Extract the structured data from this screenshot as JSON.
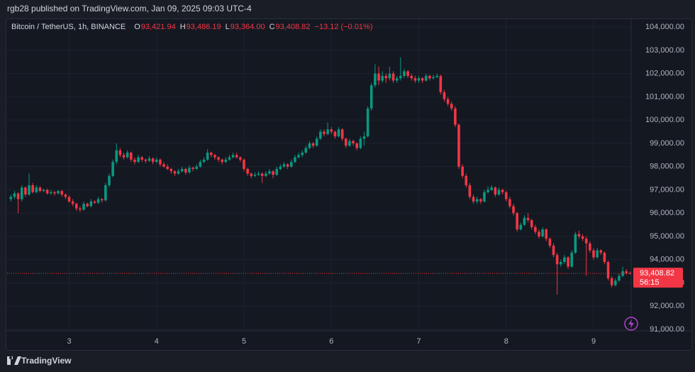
{
  "header": {
    "published": "rgb28 published on TradingView.com, Jan 09, 2025 09:03 UTC-4",
    "brand": "TradingView"
  },
  "chart_data": {
    "type": "candlestick",
    "symbol": "Bitcoin / TetherUS, 1h, BINANCE",
    "ohlc_legend": [
      {
        "label": "O",
        "value": "93,421.94"
      },
      {
        "label": "H",
        "value": "93,486.19"
      },
      {
        "label": "L",
        "value": "93,364.00"
      },
      {
        "label": "C",
        "value": "93,408.82"
      }
    ],
    "change": "−13.12 (−0.01%)",
    "last_price_label": "93,408.82",
    "countdown": "56:15",
    "up_color": "#089981",
    "down_color": "#f23645",
    "grid": true,
    "xlim": [
      2.29,
      9.43
    ],
    "xticks": [
      3,
      4,
      5,
      6,
      7,
      8,
      9
    ],
    "ylim": [
      90940,
      104370
    ],
    "yticks": [
      {
        "value": 91000,
        "label": "91,000.00"
      },
      {
        "value": 92000,
        "label": "92,000.00"
      },
      {
        "value": 93000,
        "label": "93,000.00"
      },
      {
        "value": 94000,
        "label": "94,000.00"
      },
      {
        "value": 95000,
        "label": "95,000.00"
      },
      {
        "value": 96000,
        "label": "96,000.00"
      },
      {
        "value": 97000,
        "label": "97,000.00"
      },
      {
        "value": 98000,
        "label": "98,000.00"
      },
      {
        "value": 99000,
        "label": "99,000.00"
      },
      {
        "value": 100000,
        "label": "100,000.00"
      },
      {
        "value": 101000,
        "label": "101,000.00"
      },
      {
        "value": 102000,
        "label": "102,000.00"
      },
      {
        "value": 103000,
        "label": "103,000.00"
      },
      {
        "value": 104000,
        "label": "104,000.00"
      }
    ],
    "last_price": 93408.82,
    "candles": [
      [
        2.3333,
        96600,
        96800,
        96500,
        96700
      ],
      [
        2.375,
        96700,
        96950,
        96600,
        96850
      ],
      [
        2.4167,
        96850,
        96900,
        96000,
        96600
      ],
      [
        2.4583,
        96600,
        97200,
        96500,
        97100
      ],
      [
        2.5,
        97100,
        97150,
        96700,
        96800
      ],
      [
        2.5417,
        96800,
        97700,
        96750,
        97200
      ],
      [
        2.5833,
        97200,
        97300,
        96850,
        96900
      ],
      [
        2.625,
        96900,
        97200,
        96850,
        97100
      ],
      [
        2.6667,
        97100,
        97150,
        96900,
        96950
      ],
      [
        2.7083,
        96950,
        97050,
        96900,
        97000
      ],
      [
        2.75,
        97000,
        97050,
        96800,
        96850
      ],
      [
        2.7917,
        96850,
        97000,
        96800,
        96900
      ],
      [
        2.8333,
        96900,
        96950,
        96750,
        96850
      ],
      [
        2.875,
        96850,
        97000,
        96800,
        96950
      ],
      [
        2.9167,
        96950,
        97000,
        96700,
        96800
      ],
      [
        2.9583,
        96800,
        96850,
        96600,
        96700
      ],
      [
        3.0,
        96700,
        96750,
        96450,
        96500
      ],
      [
        3.0417,
        96500,
        96600,
        96300,
        96400
      ],
      [
        3.0833,
        96400,
        96450,
        96100,
        96200
      ],
      [
        3.125,
        96200,
        96300,
        96050,
        96150
      ],
      [
        3.1667,
        96150,
        96500,
        96100,
        96400
      ],
      [
        3.2083,
        96400,
        96450,
        96250,
        96300
      ],
      [
        3.25,
        96300,
        96600,
        96250,
        96500
      ],
      [
        3.2917,
        96500,
        96550,
        96400,
        96450
      ],
      [
        3.3333,
        96450,
        96700,
        96400,
        96600
      ],
      [
        3.375,
        96600,
        96650,
        96450,
        96550
      ],
      [
        3.4167,
        96550,
        97300,
        96500,
        97200
      ],
      [
        3.4583,
        97200,
        97700,
        97100,
        97600
      ],
      [
        3.5,
        97600,
        98300,
        97550,
        98200
      ],
      [
        3.5417,
        98200,
        99000,
        98100,
        98700
      ],
      [
        3.5833,
        98700,
        98800,
        98400,
        98500
      ],
      [
        3.625,
        98500,
        98600,
        98300,
        98400
      ],
      [
        3.6667,
        98400,
        98700,
        98350,
        98600
      ],
      [
        3.7083,
        98600,
        98650,
        98200,
        98300
      ],
      [
        3.75,
        98300,
        98400,
        98100,
        98200
      ],
      [
        3.7917,
        98200,
        98500,
        98150,
        98400
      ],
      [
        3.8333,
        98400,
        98450,
        98200,
        98300
      ],
      [
        3.875,
        98300,
        98350,
        98150,
        98250
      ],
      [
        3.9167,
        98250,
        98450,
        98200,
        98350
      ],
      [
        3.9583,
        98350,
        98400,
        98100,
        98200
      ],
      [
        4.0,
        98200,
        98400,
        98150,
        98300
      ],
      [
        4.0417,
        98300,
        98350,
        98000,
        98100
      ],
      [
        4.0833,
        98100,
        98200,
        97950,
        98000
      ],
      [
        4.125,
        98000,
        98100,
        97850,
        97900
      ],
      [
        4.1667,
        97900,
        97950,
        97700,
        97800
      ],
      [
        4.2083,
        97800,
        97850,
        97600,
        97700
      ],
      [
        4.25,
        97700,
        97900,
        97650,
        97800
      ],
      [
        4.2917,
        97800,
        98000,
        97750,
        97900
      ],
      [
        4.3333,
        97900,
        97950,
        97650,
        97750
      ],
      [
        4.375,
        97750,
        98050,
        97700,
        97950
      ],
      [
        4.4167,
        97950,
        98000,
        97800,
        97900
      ],
      [
        4.4583,
        97900,
        98100,
        97850,
        98000
      ],
      [
        4.5,
        98000,
        98300,
        97950,
        98200
      ],
      [
        4.5417,
        98200,
        98400,
        98150,
        98300
      ],
      [
        4.5833,
        98300,
        98750,
        98250,
        98600
      ],
      [
        4.625,
        98600,
        98650,
        98400,
        98500
      ],
      [
        4.6667,
        98500,
        98550,
        98300,
        98400
      ],
      [
        4.7083,
        98400,
        98450,
        98200,
        98300
      ],
      [
        4.75,
        98300,
        98350,
        98100,
        98200
      ],
      [
        4.7917,
        98200,
        98400,
        98150,
        98300
      ],
      [
        4.8333,
        98300,
        98500,
        98250,
        98400
      ],
      [
        4.875,
        98400,
        98600,
        98350,
        98500
      ],
      [
        4.9167,
        98500,
        98600,
        98350,
        98400
      ],
      [
        4.9583,
        98400,
        98450,
        98200,
        98300
      ],
      [
        5.0,
        98300,
        98350,
        97800,
        97900
      ],
      [
        5.0417,
        97900,
        97950,
        97600,
        97700
      ],
      [
        5.0833,
        97700,
        97750,
        97500,
        97600
      ],
      [
        5.125,
        97600,
        97750,
        97550,
        97650
      ],
      [
        5.1667,
        97650,
        97800,
        97600,
        97700
      ],
      [
        5.2083,
        97700,
        97750,
        97300,
        97600
      ],
      [
        5.25,
        97600,
        97800,
        97550,
        97700
      ],
      [
        5.2917,
        97700,
        97900,
        97650,
        97800
      ],
      [
        5.3333,
        97800,
        97850,
        97500,
        97650
      ],
      [
        5.375,
        97650,
        98000,
        97600,
        97900
      ],
      [
        5.4167,
        97900,
        98100,
        97850,
        98000
      ],
      [
        5.4583,
        98000,
        98200,
        97950,
        98100
      ],
      [
        5.5,
        98100,
        98150,
        97900,
        98000
      ],
      [
        5.5417,
        98000,
        98300,
        97950,
        98200
      ],
      [
        5.5833,
        98200,
        98500,
        98150,
        98400
      ],
      [
        5.625,
        98400,
        98600,
        98350,
        98500
      ],
      [
        5.6667,
        98500,
        98700,
        98400,
        98600
      ],
      [
        5.7083,
        98600,
        98900,
        98550,
        98800
      ],
      [
        5.75,
        98800,
        99100,
        98750,
        99000
      ],
      [
        5.7917,
        99000,
        99050,
        98800,
        98900
      ],
      [
        5.8333,
        98900,
        99300,
        98850,
        99200
      ],
      [
        5.875,
        99200,
        99600,
        99150,
        99500
      ],
      [
        5.9167,
        99500,
        99600,
        99300,
        99400
      ],
      [
        5.9583,
        99400,
        99900,
        99350,
        99600
      ],
      [
        6.0,
        99600,
        99700,
        99400,
        99500
      ],
      [
        6.0417,
        99500,
        99550,
        99200,
        99300
      ],
      [
        6.0833,
        99300,
        99700,
        99250,
        99600
      ],
      [
        6.125,
        99600,
        99650,
        99100,
        99200
      ],
      [
        6.1667,
        99200,
        99250,
        98800,
        98900
      ],
      [
        6.2083,
        98900,
        99200,
        98850,
        99100
      ],
      [
        6.25,
        99100,
        99150,
        98900,
        99000
      ],
      [
        6.2917,
        99000,
        99050,
        98700,
        98800
      ],
      [
        6.3333,
        98800,
        99300,
        98750,
        99200
      ],
      [
        6.375,
        99200,
        99500,
        98900,
        99300
      ],
      [
        6.4167,
        99300,
        100600,
        99250,
        100500
      ],
      [
        6.4583,
        100500,
        101600,
        100400,
        101500
      ],
      [
        6.5,
        101500,
        102400,
        101400,
        102000
      ],
      [
        6.5417,
        102000,
        102300,
        101500,
        101700
      ],
      [
        6.5833,
        101700,
        102100,
        101600,
        101900
      ],
      [
        6.625,
        101900,
        102000,
        101600,
        101800
      ],
      [
        6.6667,
        101800,
        102300,
        101700,
        102000
      ],
      [
        6.7083,
        102000,
        102100,
        101600,
        101700
      ],
      [
        6.75,
        101700,
        101900,
        101600,
        101800
      ],
      [
        6.7917,
        101800,
        102700,
        101700,
        101900
      ],
      [
        6.8333,
        101900,
        102200,
        101800,
        102100
      ],
      [
        6.875,
        102100,
        102150,
        101800,
        101900
      ],
      [
        6.9167,
        101900,
        102000,
        101700,
        101800
      ],
      [
        6.9583,
        101800,
        101900,
        101600,
        101700
      ],
      [
        7.0,
        101700,
        101900,
        101600,
        101800
      ],
      [
        7.0417,
        101800,
        101850,
        101600,
        101700
      ],
      [
        7.0833,
        101700,
        102000,
        101650,
        101900
      ],
      [
        7.125,
        101900,
        101950,
        101700,
        101800
      ],
      [
        7.1667,
        101800,
        101950,
        101750,
        101850
      ],
      [
        7.2083,
        101850,
        102000,
        101800,
        101900
      ],
      [
        7.25,
        101900,
        101950,
        101100,
        101200
      ],
      [
        7.2917,
        101200,
        101300,
        100800,
        100900
      ],
      [
        7.3333,
        100900,
        101000,
        100600,
        100700
      ],
      [
        7.375,
        100700,
        100800,
        100400,
        100500
      ],
      [
        7.4167,
        100500,
        100600,
        99700,
        99800
      ],
      [
        7.4583,
        99800,
        99850,
        97900,
        98000
      ],
      [
        7.5,
        98000,
        98100,
        97500,
        97600
      ],
      [
        7.5417,
        97600,
        97700,
        97100,
        97200
      ],
      [
        7.5833,
        97200,
        97300,
        96600,
        96700
      ],
      [
        7.625,
        96700,
        96800,
        96400,
        96500
      ],
      [
        7.6667,
        96500,
        96700,
        96400,
        96600
      ],
      [
        7.7083,
        96600,
        96650,
        96400,
        96500
      ],
      [
        7.75,
        96500,
        97000,
        96450,
        96900
      ],
      [
        7.7917,
        96900,
        97150,
        96850,
        97000
      ],
      [
        7.8333,
        97000,
        97200,
        96950,
        97100
      ],
      [
        7.875,
        97100,
        97150,
        96700,
        96800
      ],
      [
        7.9167,
        96800,
        97100,
        96750,
        97000
      ],
      [
        7.9583,
        97000,
        97050,
        96800,
        96900
      ],
      [
        8.0,
        96900,
        96950,
        96500,
        96600
      ],
      [
        8.0417,
        96600,
        96700,
        96200,
        96300
      ],
      [
        8.0833,
        96300,
        96400,
        95900,
        96000
      ],
      [
        8.125,
        96000,
        96050,
        95200,
        95300
      ],
      [
        8.1667,
        95300,
        95600,
        95250,
        95500
      ],
      [
        8.2083,
        95500,
        95900,
        95450,
        95800
      ],
      [
        8.25,
        95800,
        96000,
        95600,
        95700
      ],
      [
        8.2917,
        95700,
        95750,
        95300,
        95400
      ],
      [
        8.3333,
        95400,
        95500,
        95100,
        95200
      ],
      [
        8.375,
        95200,
        95300,
        94900,
        95000
      ],
      [
        8.4167,
        95000,
        95400,
        94950,
        95300
      ],
      [
        8.4583,
        95300,
        95350,
        94800,
        94900
      ],
      [
        8.5,
        94900,
        94950,
        94500,
        94600
      ],
      [
        8.5417,
        94600,
        94700,
        94100,
        94200
      ],
      [
        8.5833,
        94200,
        94300,
        92500,
        93800
      ],
      [
        8.625,
        93800,
        94000,
        93700,
        93900
      ],
      [
        8.6667,
        93900,
        94200,
        93800,
        94100
      ],
      [
        8.7083,
        94100,
        94150,
        93600,
        93700
      ],
      [
        8.75,
        93700,
        94400,
        93650,
        94300
      ],
      [
        8.7917,
        94300,
        95200,
        94250,
        95100
      ],
      [
        8.8333,
        95100,
        95250,
        94900,
        95000
      ],
      [
        8.875,
        95000,
        95100,
        94800,
        94900
      ],
      [
        8.9167,
        94900,
        95000,
        93300,
        94700
      ],
      [
        8.9583,
        94700,
        94800,
        94300,
        94400
      ],
      [
        9.0,
        94400,
        94500,
        94000,
        94100
      ],
      [
        9.0417,
        94100,
        94500,
        94050,
        94400
      ],
      [
        9.0833,
        94400,
        94450,
        94200,
        94300
      ],
      [
        9.125,
        94300,
        94350,
        93800,
        93900
      ],
      [
        9.1667,
        93900,
        93950,
        93100,
        93200
      ],
      [
        9.2083,
        93200,
        93300,
        92800,
        92900
      ],
      [
        9.25,
        92900,
        93200,
        92850,
        93100
      ],
      [
        9.2917,
        93100,
        93400,
        93050,
        93300
      ],
      [
        9.3333,
        93300,
        93700,
        93250,
        93500
      ],
      [
        9.375,
        93500,
        93600,
        93350,
        93421.94
      ],
      [
        9.4167,
        93421.94,
        93486.19,
        93364,
        93408.82
      ]
    ]
  }
}
